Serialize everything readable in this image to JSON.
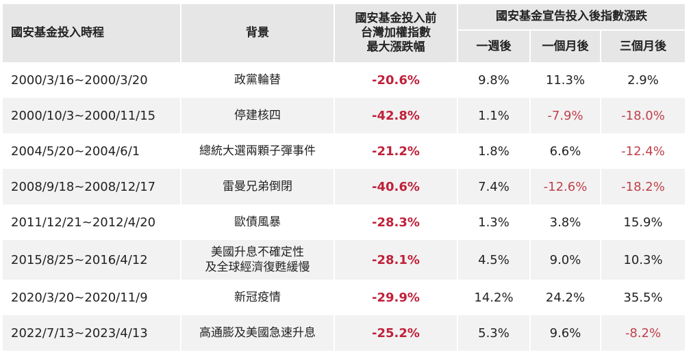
{
  "table": {
    "headers": {
      "period": "國安基金投入時程",
      "background": "背景",
      "max_drop": [
        "國安基金投入前",
        "台灣加權指數",
        "最大漲跌幅"
      ],
      "after_group": "國安基金宣告投入後指數漲跌",
      "week1": "一週後",
      "month1": "一個月後",
      "month3": "三個月後"
    },
    "rows": [
      {
        "period": "2000/3/16~2000/3/20",
        "background": [
          "政黨輪替"
        ],
        "max_drop": "-20.6%",
        "week1": "9.8%",
        "month1": "11.3%",
        "month3": "2.9%",
        "week1_neg": false,
        "month1_neg": false,
        "month3_neg": false
      },
      {
        "period": "2000/10/3~2000/11/15",
        "background": [
          "停建核四"
        ],
        "max_drop": "-42.8%",
        "week1": "1.1%",
        "month1": "-7.9%",
        "month3": "-18.0%",
        "week1_neg": false,
        "month1_neg": true,
        "month3_neg": true
      },
      {
        "period": "2004/5/20~2004/6/1",
        "background": [
          "總統大選兩顆子彈事件"
        ],
        "max_drop": "-21.2%",
        "week1": "1.8%",
        "month1": "6.6%",
        "month3": "-12.4%",
        "week1_neg": false,
        "month1_neg": false,
        "month3_neg": true
      },
      {
        "period": "2008/9/18~2008/12/17",
        "background": [
          "雷曼兄弟倒閉"
        ],
        "max_drop": "-40.6%",
        "week1": "7.4%",
        "month1": "-12.6%",
        "month3": "-18.2%",
        "week1_neg": false,
        "month1_neg": true,
        "month3_neg": true
      },
      {
        "period": "2011/12/21~2012/4/20",
        "background": [
          "歐債風暴"
        ],
        "max_drop": "-28.3%",
        "week1": "1.3%",
        "month1": "3.8%",
        "month3": "15.9%",
        "week1_neg": false,
        "month1_neg": false,
        "month3_neg": false
      },
      {
        "period": "2015/8/25~2016/4/12",
        "background": [
          "美國升息不確定性",
          "及全球經濟復甦緩慢"
        ],
        "max_drop": "-28.1%",
        "week1": "4.5%",
        "month1": "9.0%",
        "month3": "10.3%",
        "week1_neg": false,
        "month1_neg": false,
        "month3_neg": false
      },
      {
        "period": "2020/3/20~2020/11/9",
        "background": [
          "新冠疫情"
        ],
        "max_drop": "-29.9%",
        "week1": "14.2%",
        "month1": "24.2%",
        "month3": "35.5%",
        "week1_neg": false,
        "month1_neg": false,
        "month3_neg": false
      },
      {
        "period": "2022/7/13~2023/4/13",
        "background": [
          "高通膨及美國急速升息"
        ],
        "max_drop": "-25.2%",
        "week1": "5.3%",
        "month1": "9.6%",
        "month3": "-8.2%",
        "week1_neg": false,
        "month1_neg": false,
        "month3_neg": true
      }
    ],
    "colors": {
      "header_bg": "#e6e6e6",
      "stripe_bg": "#f2f2f2",
      "max_drop_text": "#c0203a",
      "negative_text": "#c0404a"
    }
  }
}
